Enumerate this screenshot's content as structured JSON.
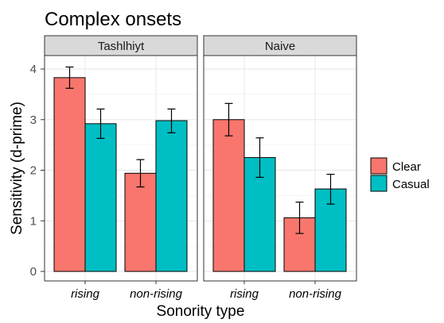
{
  "chart_data": {
    "type": "bar",
    "title": "Complex onsets",
    "xlabel": "Sonority type",
    "ylabel": "Sensitivity (d-prime)",
    "ylim": [
      0,
      4.3
    ],
    "yticks": [
      0,
      1,
      2,
      3,
      4
    ],
    "grid": true,
    "legend_position": "right",
    "categories": [
      "rising",
      "non-rising"
    ],
    "facets": [
      {
        "label": "Tashlhiyt",
        "series": [
          {
            "name": "Clear",
            "values": [
              3.83,
              1.94
            ],
            "ci_low": [
              3.62,
              1.67
            ],
            "ci_high": [
              4.04,
              2.21
            ]
          },
          {
            "name": "Casual",
            "values": [
              2.92,
              2.98
            ],
            "ci_low": [
              2.63,
              2.74
            ],
            "ci_high": [
              3.21,
              3.21
            ]
          }
        ]
      },
      {
        "label": "Naive",
        "series": [
          {
            "name": "Clear",
            "values": [
              3.0,
              1.06
            ],
            "ci_low": [
              2.68,
              0.75
            ],
            "ci_high": [
              3.32,
              1.37
            ]
          },
          {
            "name": "Casual",
            "values": [
              2.25,
              1.63
            ],
            "ci_low": [
              1.86,
              1.33
            ],
            "ci_high": [
              2.64,
              1.92
            ]
          }
        ]
      }
    ],
    "legend": [
      {
        "name": "Clear",
        "color": "#F8766D"
      },
      {
        "name": "Casual",
        "color": "#00BFC4"
      }
    ],
    "colors": {
      "panel_background": "#ffffff",
      "strip_background": "#D9D9D9",
      "grid_line": "#EBEBEB",
      "border": "#333333"
    }
  }
}
